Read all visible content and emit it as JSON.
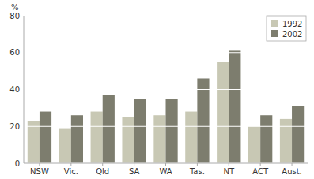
{
  "chart_data": {
    "type": "bar",
    "ylabel": "%",
    "categories": [
      "NSW",
      "Vic.",
      "Qld",
      "SA",
      "WA",
      "Tas.",
      "NT",
      "ACT",
      "Aust."
    ],
    "series": [
      {
        "name": "1992",
        "color": "#c8c8b4",
        "values": [
          23,
          19,
          28,
          25,
          26,
          28,
          55,
          20,
          24
        ]
      },
      {
        "name": "2002",
        "color": "#7d7d6e",
        "values": [
          28,
          26,
          37,
          35,
          35,
          46,
          61,
          26,
          31
        ]
      }
    ],
    "ylim": [
      0,
      80
    ],
    "yticks": [
      0,
      20,
      40,
      60,
      80
    ],
    "grid": true,
    "legend": "upper right"
  }
}
